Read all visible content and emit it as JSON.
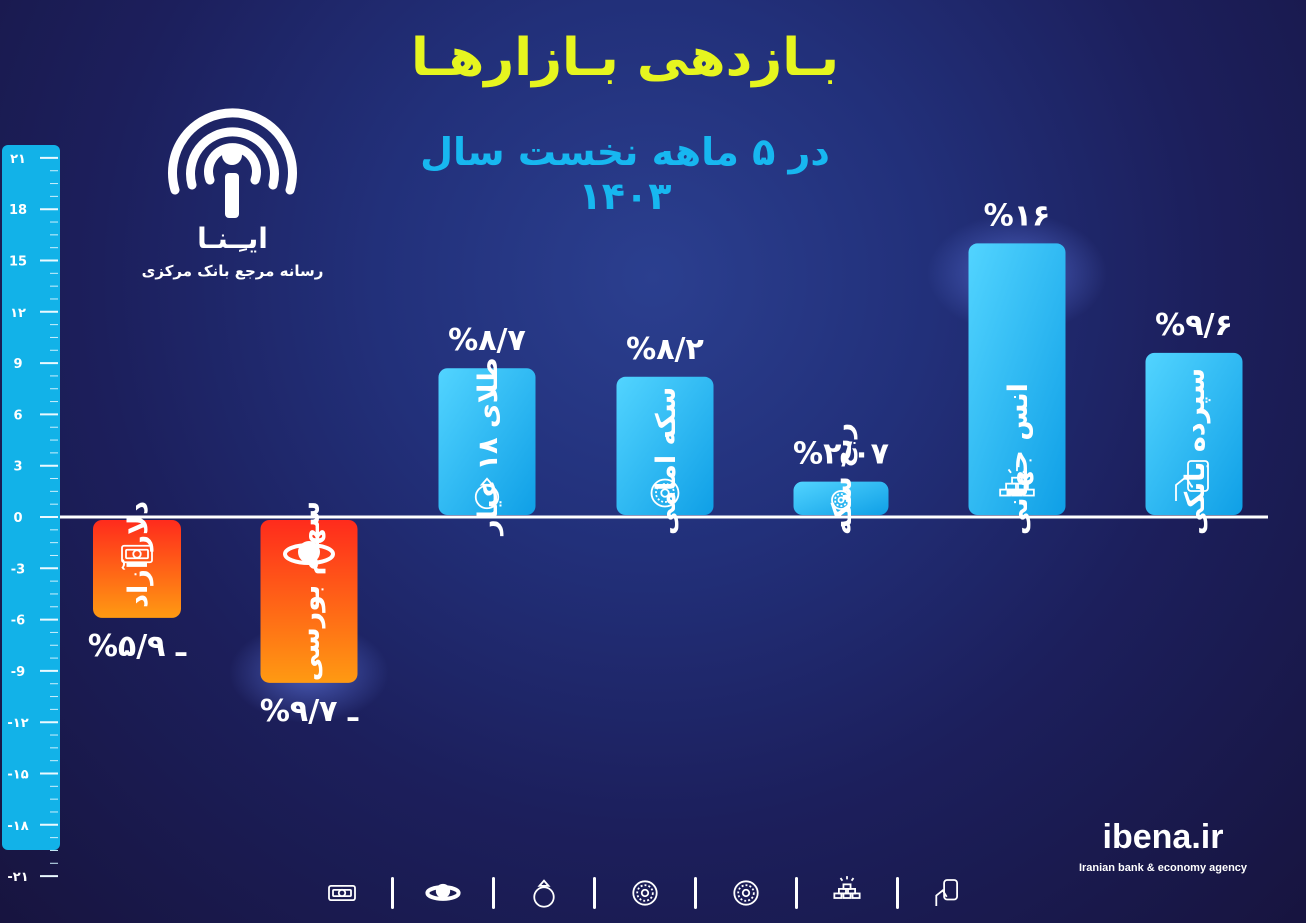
{
  "header": {
    "title": "بـازدهی بـازارهـا",
    "subtitle": "در ۵ ماهه نخست سال ۱۴۰۳"
  },
  "logo": {
    "name": "ایـِـنـا",
    "tagline": "رسانه مرجع بانک مرکزی",
    "icon": "broadcast-antenna-icon"
  },
  "brand": {
    "site": "ibena.ir",
    "tagline": "Iranian bank & economy agency"
  },
  "colors": {
    "positive_bar": "#1fb6f5",
    "negative_bar": "#f2321b",
    "axis_scale": "#12b2e8",
    "title": "#e6f51f",
    "subtitle": "#17b7f0"
  },
  "chart_data": {
    "type": "bar",
    "categories": [
      "دلار آزاد",
      "سهام بورسی",
      "طلای ۱۸ عیار",
      "سکه امامی",
      "ربع سکه",
      "انس جهانی",
      "سپرده بانکی"
    ],
    "values": [
      -5.9,
      -9.7,
      8.7,
      8.2,
      2.07,
      16,
      9.6
    ],
    "value_labels": [
      "%ـ ۵/۹",
      "%ـ ۹/۷",
      "%۸/۷",
      "%۸/۲",
      "%۲/۰۷",
      "%۱۶",
      "%۹/۶"
    ],
    "icons": [
      "cash-icon",
      "stock-exchange-icon",
      "ring-icon",
      "gold-coin-icon",
      "quarter-coin-icon",
      "gold-bars-icon",
      "bank-card-icon"
    ],
    "ylim": [
      -21,
      21
    ],
    "yticks": [
      21,
      18,
      15,
      12,
      9,
      6,
      3,
      0,
      -3,
      -6,
      -9,
      -12,
      -15,
      -18,
      -21
    ],
    "ytick_labels": [
      "۲۱",
      "18",
      "15",
      "۱۲",
      "9",
      "6",
      "3",
      "0",
      "-3",
      "-6",
      "-9",
      "-۱۲",
      "-۱۵",
      "-۱۸",
      "-۲۱"
    ],
    "legend": "none",
    "grid": false
  }
}
